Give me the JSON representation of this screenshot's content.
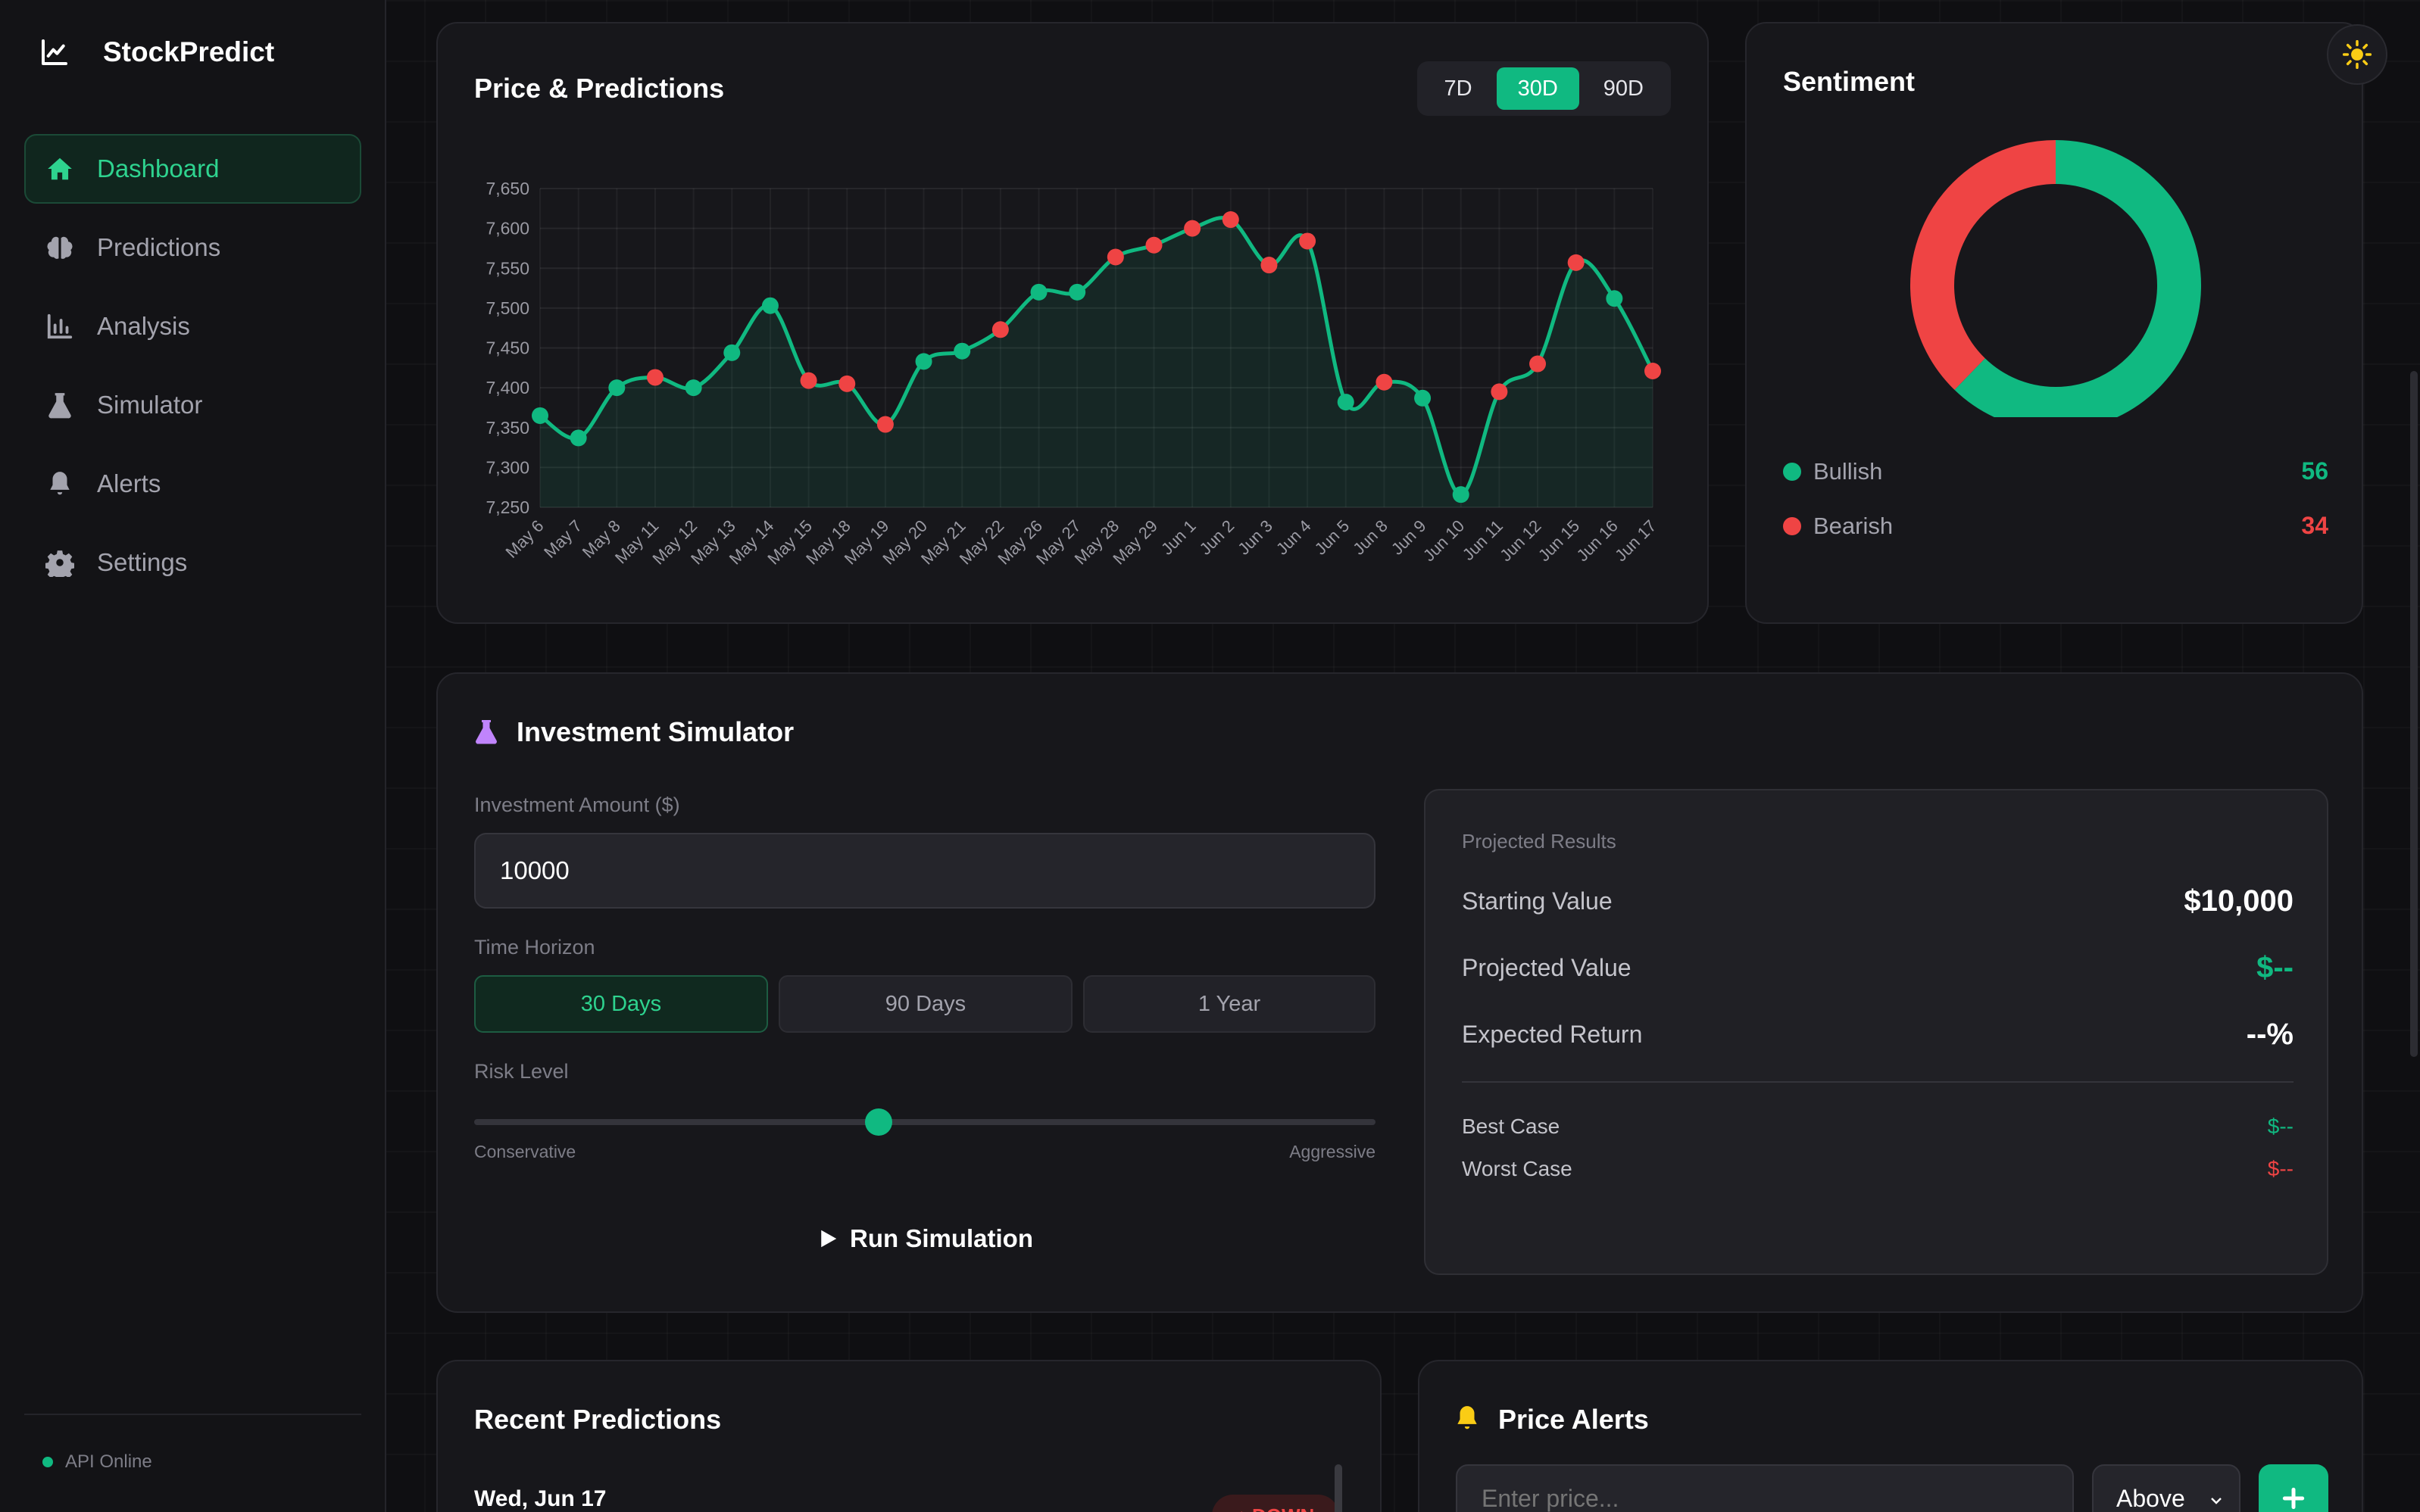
{
  "app": {
    "name": "StockPredict",
    "status": "API Online"
  },
  "colors": {
    "accent": "#10b981",
    "bullish": "#10b981",
    "bearish": "#ef4444",
    "sim_icon": "#c084fc",
    "alert_icon": "#facc15"
  },
  "nav": [
    {
      "label": "Dashboard",
      "icon": "home-icon",
      "active": true
    },
    {
      "label": "Predictions",
      "icon": "brain-icon"
    },
    {
      "label": "Analysis",
      "icon": "bar-chart-icon"
    },
    {
      "label": "Simulator",
      "icon": "flask-icon"
    },
    {
      "label": "Alerts",
      "icon": "bell-icon"
    },
    {
      "label": "Settings",
      "icon": "gear-icon"
    }
  ],
  "price_card": {
    "title": "Price & Predictions",
    "ranges": [
      {
        "label": "7D"
      },
      {
        "label": "30D",
        "active": true
      },
      {
        "label": "90D"
      }
    ]
  },
  "chart_data": {
    "type": "line",
    "title": "",
    "xlabel": "",
    "ylabel": "",
    "ylim": [
      7250,
      7650
    ],
    "yticks": [
      "7,650",
      "7,600",
      "7,550",
      "7,500",
      "7,450",
      "7,400",
      "7,350",
      "7,300",
      "7,250"
    ],
    "grid": true,
    "categories": [
      "May 6",
      "May 7",
      "May 8",
      "May 11",
      "May 12",
      "May 13",
      "May 14",
      "May 15",
      "May 18",
      "May 19",
      "May 20",
      "May 21",
      "May 22",
      "May 26",
      "May 27",
      "May 28",
      "May 29",
      "Jun 1",
      "Jun 2",
      "Jun 3",
      "Jun 4",
      "Jun 5",
      "Jun 8",
      "Jun 9",
      "Jun 10",
      "Jun 11",
      "Jun 12",
      "Jun 15",
      "Jun 16",
      "Jun 17"
    ],
    "series": [
      {
        "values": [
          7365,
          7337,
          7400,
          7413,
          7400,
          7444,
          7503,
          7409,
          7405,
          7354,
          7433,
          7446,
          7473,
          7520,
          7520,
          7564,
          7579,
          7600,
          7611,
          7554,
          7584,
          7382,
          7407,
          7387,
          7266,
          7395,
          7430,
          7557,
          7512,
          7421
        ],
        "point_colors": [
          "green",
          "green",
          "green",
          "red",
          "green",
          "green",
          "green",
          "red",
          "red",
          "red",
          "green",
          "green",
          "red",
          "green",
          "green",
          "red",
          "red",
          "red",
          "red",
          "red",
          "red",
          "green",
          "red",
          "green",
          "green",
          "red",
          "red",
          "red",
          "green",
          "red"
        ]
      }
    ]
  },
  "sentiment": {
    "title": "Sentiment",
    "items": [
      {
        "label": "Bullish",
        "value": "56",
        "color": "#10b981"
      },
      {
        "label": "Bearish",
        "value": "34",
        "color": "#ef4444"
      }
    ]
  },
  "simulator": {
    "title": "Investment Simulator",
    "amount_label": "Investment Amount ($)",
    "amount_value": "10000",
    "horizon_label": "Time Horizon",
    "horizons": [
      {
        "label": "30 Days",
        "active": true
      },
      {
        "label": "90 Days"
      },
      {
        "label": "1 Year"
      }
    ],
    "risk_label": "Risk Level",
    "risk_value": 0.45,
    "risk_min": "Conservative",
    "risk_max": "Aggressive",
    "run_label": "Run Simulation",
    "results": {
      "title": "Projected Results",
      "starting_label": "Starting Value",
      "starting_value": "$10,000",
      "projected_label": "Projected Value",
      "projected_value": "$--",
      "return_label": "Expected Return",
      "return_value": "--%",
      "best_label": "Best Case",
      "best_value": "$--",
      "worst_label": "Worst Case",
      "worst_value": "$--"
    }
  },
  "recent": {
    "title": "Recent Predictions",
    "first_date": "Wed, Jun 17",
    "first_badge": "↓ DOWN"
  },
  "alerts": {
    "title": "Price Alerts",
    "price_placeholder": "Enter price...",
    "direction": "Above"
  }
}
